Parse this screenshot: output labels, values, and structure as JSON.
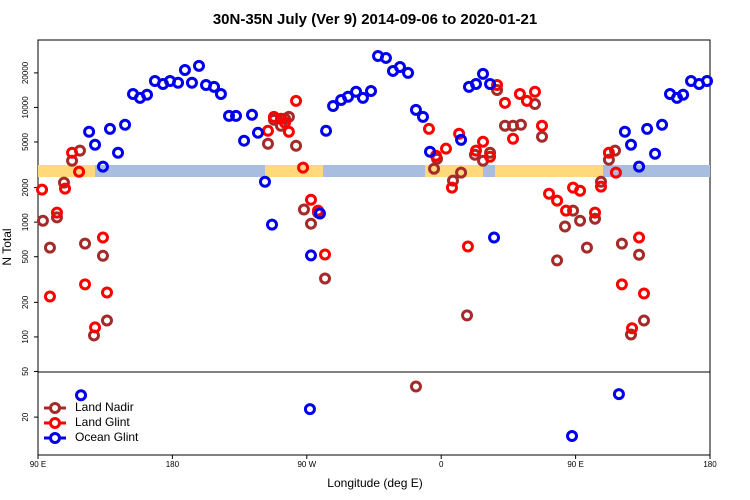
{
  "chart_data": {
    "type": "scatter",
    "title": "30N-35N July (Ver 9)   2014-09-06 to 2020-01-21",
    "x_label": "Longitude (deg E)",
    "y_label": "N Total",
    "log_y": true,
    "legend": "lower left",
    "xlim": [
      90,
      540
    ],
    "ylim": [
      9.35,
      38700
    ],
    "xticks": [
      {
        "value": 90,
        "label": "90 E"
      },
      180,
      {
        "value": 270,
        "label": "90 W"
      },
      {
        "value": 360,
        "label": "0"
      },
      {
        "value": 450,
        "label": "90 E"
      },
      {
        "value": 540,
        "label": "180"
      }
    ],
    "yticks": [
      20,
      50,
      100,
      200,
      500,
      1000,
      2000,
      5000,
      10000,
      20000
    ],
    "series": [
      {
        "name": "Land Nadir",
        "color": "#a52a2a",
        "x": [
          93.3,
          98,
          102.7,
          107.4,
          112.8,
          118.1,
          121.5,
          127.5,
          133.5,
          136.2,
          244,
          248,
          252.7,
          255.4,
          258,
          262.8,
          268.1,
          272.8,
          277.5,
          282.2,
          343.1,
          355.2,
          357.2,
          367.9,
          373.3,
          377.3,
          382.6,
          388,
          392.7,
          397.4,
          402.7,
          408.1,
          413.4,
          422.8,
          427.5,
          437.6,
          442.9,
          448.3,
          453,
          457.6,
          463,
          467,
          472.3,
          476.4,
          481,
          487.1,
          492.5,
          495.8
        ],
        "values": [
          1030,
          600,
          1100,
          2210,
          3430,
          4200,
          650,
          103,
          510,
          139,
          4830,
          7800,
          6920,
          7960,
          8280,
          4640,
          1290,
          970,
          1210,
          323,
          37,
          2920,
          3570,
          2300,
          2700,
          154,
          3870,
          3430,
          4030,
          14200,
          6920,
          6920,
          7060,
          10700,
          5550,
          464,
          916,
          1260,
          1030,
          600,
          1070,
          2250,
          3500,
          4200,
          650,
          105,
          520,
          139
        ]
      },
      {
        "name": "Land Glint",
        "color": "#ff0000",
        "x": [
          92.7,
          98,
          102.7,
          108.1,
          112.8,
          117.5,
          121.5,
          128.2,
          133.5,
          136.2,
          244,
          248,
          252.7,
          255.4,
          258,
          262.8,
          267.5,
          272.8,
          277.5,
          282.2,
          351.8,
          356.5,
          363.2,
          367.2,
          372,
          377.9,
          383.3,
          388,
          392.7,
          397.4,
          402.7,
          408.1,
          412.7,
          417.4,
          422.8,
          427.5,
          432.2,
          437.6,
          443.6,
          448.3,
          453,
          463,
          467,
          472.3,
          477,
          481,
          487.8,
          492.5,
          495.8
        ],
        "values": [
          1920,
          225,
          1210,
          1960,
          4030,
          2750,
          287,
          121,
          735,
          244,
          6260,
          8280,
          7960,
          7350,
          6140,
          11400,
          2990,
          1570,
          1260,
          523,
          6510,
          3790,
          4370,
          2000,
          5900,
          614,
          4200,
          5020,
          3720,
          15700,
          10960,
          5330,
          13100,
          11400,
          13700,
          6920,
          1770,
          1540,
          1260,
          2000,
          1880,
          1210,
          2040,
          4030,
          2700,
          287,
          119,
          735,
          239
        ]
      },
      {
        "name": "Ocean Glint",
        "color": "#0000ee",
        "x": [
          118.8,
          124.2,
          128.2,
          133.5,
          138.2,
          143.6,
          148.3,
          153.6,
          158.3,
          163,
          168.3,
          173.7,
          178.4,
          183.8,
          188.4,
          193.1,
          197.8,
          202.5,
          207.9,
          212.5,
          217.9,
          222.6,
          228,
          233.3,
          237.3,
          242,
          246.7,
          272.1,
          272.8,
          278.8,
          282.9,
          287.6,
          293,
          297.6,
          303,
          307.6,
          313,
          317.7,
          323,
          327.7,
          332.4,
          337.8,
          343.1,
          347.8,
          352.5,
          373.3,
          378.6,
          383.3,
          388,
          392.7,
          395.4,
          447.6,
          479,
          483,
          487.1,
          492.5,
          497.9,
          503.2,
          507.9,
          513.2,
          517.9,
          522,
          527.3,
          532.7,
          538
        ],
        "values": [
          31,
          6140,
          4730,
          3050,
          6510,
          4030,
          7060,
          13100,
          12100,
          12900,
          17000,
          16000,
          17000,
          16400,
          21200,
          16400,
          23000,
          15700,
          15100,
          13100,
          8450,
          8450,
          5130,
          8630,
          6010,
          2250,
          953,
          23.5,
          513,
          1190,
          6260,
          10300,
          11600,
          12400,
          13700,
          12100,
          13900,
          28100,
          27000,
          20800,
          22500,
          20000,
          9530,
          8280,
          4110,
          5220,
          15100,
          16000,
          19600,
          16000,
          735,
          13.7,
          31.7,
          6140,
          4730,
          3050,
          6510,
          3950,
          7060,
          13100,
          12100,
          12900,
          17000,
          16000,
          17000
        ]
      }
    ]
  }
}
